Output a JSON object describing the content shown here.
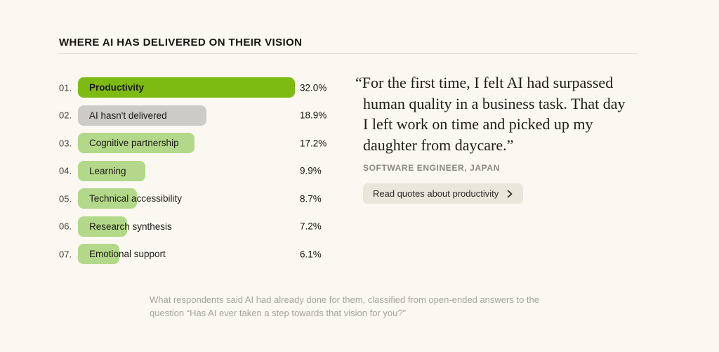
{
  "page": {
    "title": "WHERE AI HAS DELIVERED ON THEIR VISION",
    "background_color": "#FAF8F1"
  },
  "chart_data": {
    "type": "bar",
    "orientation": "horizontal",
    "title": "WHERE AI HAS DELIVERED ON THEIR VISION",
    "unit": "%",
    "xlim": [
      0,
      32
    ],
    "grid": false,
    "legend": "none",
    "categories": [
      "Productivity",
      "AI hasn't delivered",
      "Cognitive partnership",
      "Learning",
      "Technical accessibility",
      "Research synthesis",
      "Emotional support"
    ],
    "values": [
      32.0,
      18.9,
      17.2,
      9.9,
      8.7,
      7.2,
      6.1
    ],
    "items": [
      {
        "rank": "01.",
        "label": "Productivity",
        "value": 32.0,
        "display": "32.0%",
        "style": "highlight"
      },
      {
        "rank": "02.",
        "label": "AI hasn't delivered",
        "value": 18.9,
        "display": "18.9%",
        "style": "neutral"
      },
      {
        "rank": "03.",
        "label": "Cognitive partnership",
        "value": 17.2,
        "display": "17.2%",
        "style": "normal"
      },
      {
        "rank": "04.",
        "label": "Learning",
        "value": 9.9,
        "display": "9.9%",
        "style": "normal"
      },
      {
        "rank": "05.",
        "label": "Technical accessibility",
        "value": 8.7,
        "display": "8.7%",
        "style": "normal"
      },
      {
        "rank": "06.",
        "label": "Research synthesis",
        "value": 7.2,
        "display": "7.2%",
        "style": "normal"
      },
      {
        "rank": "07.",
        "label": "Emotional support",
        "value": 6.1,
        "display": "6.1%",
        "style": "normal"
      }
    ],
    "colors": {
      "highlight": "#7EBB12",
      "neutral": "#CDCBC5",
      "normal": "#B3D889"
    }
  },
  "quote": {
    "text": "“For the first time, I felt AI had surpassed\nhuman quality in a business task. That day\nI left work on time and picked up my\ndaughter from daycare.”",
    "attribution": "SOFTWARE ENGINEER, JAPAN",
    "button_label": "Read quotes about productivity"
  },
  "caption": {
    "line1": "What respondents said AI had already done for them, classified from open-ended answers to the",
    "line2": "question “Has AI ever taken a step towards that vision for you?”"
  }
}
